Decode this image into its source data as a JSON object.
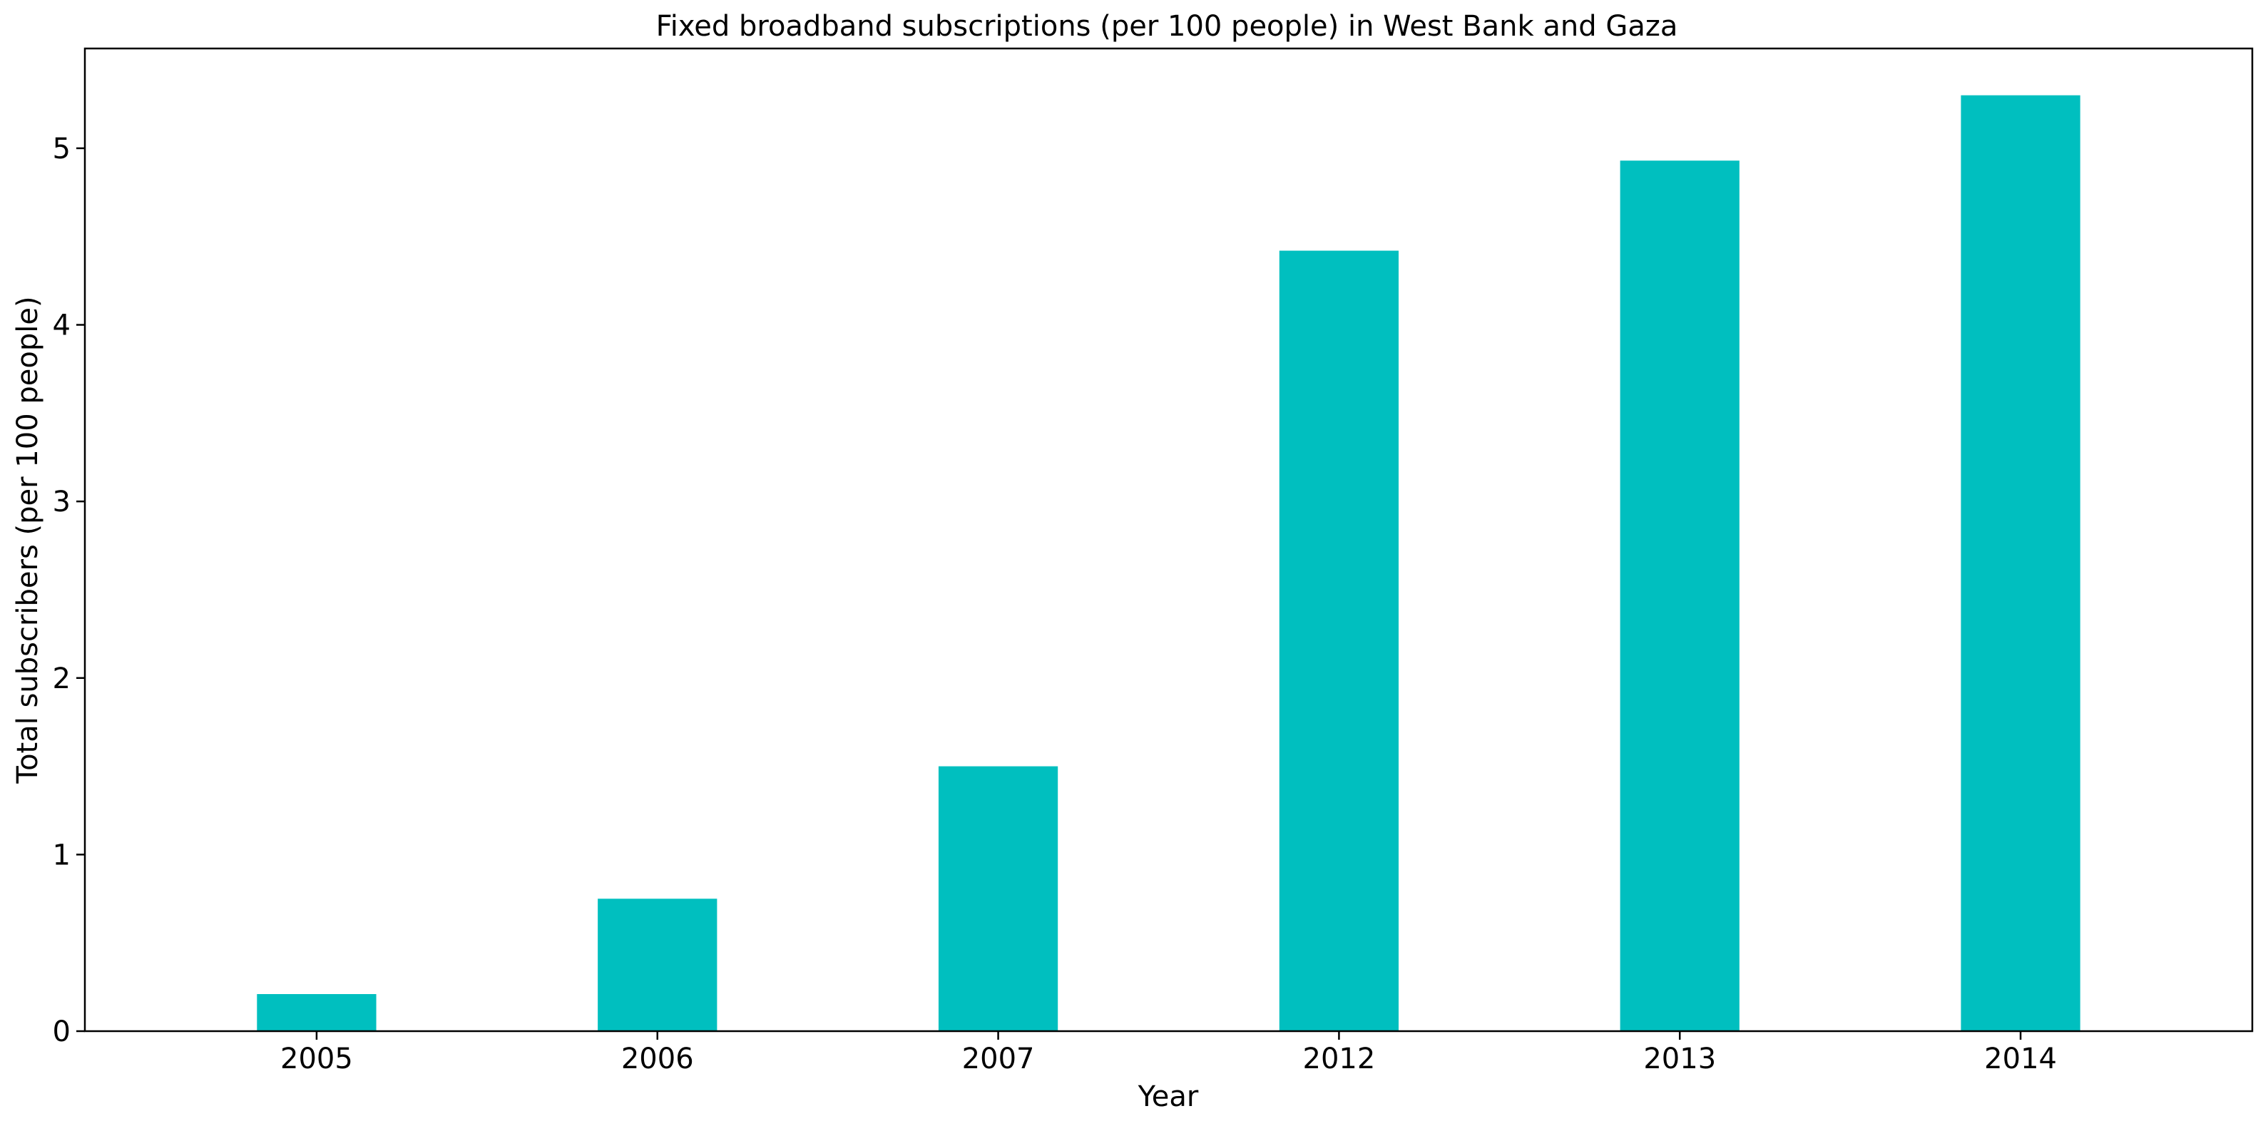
{
  "chart_data": {
    "type": "bar",
    "title": "Fixed broadband subscriptions (per 100 people) in West Bank and Gaza",
    "xlabel": "Year",
    "ylabel": "Total subscribers (per 100 people)",
    "categories": [
      "2005",
      "2006",
      "2007",
      "2012",
      "2013",
      "2014"
    ],
    "values": [
      0.21,
      0.75,
      1.5,
      4.42,
      4.93,
      5.3
    ],
    "ylim": [
      0,
      5.565
    ],
    "yticks": [
      0,
      1,
      2,
      3,
      4,
      5
    ],
    "grid": false,
    "legend": "none",
    "colors": {
      "bar": "#00bfbf",
      "axis": "#000000"
    }
  }
}
